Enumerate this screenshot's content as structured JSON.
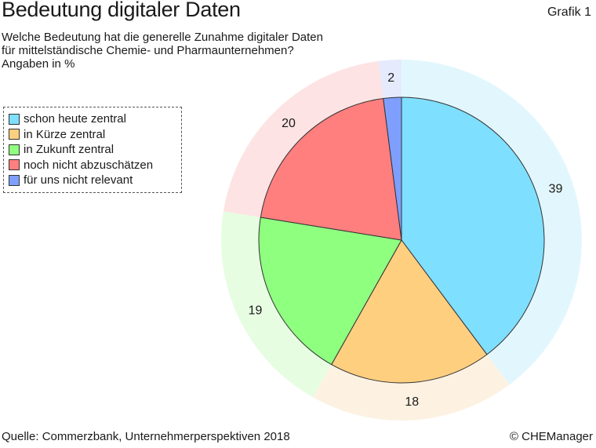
{
  "header": {
    "title": "Bedeutung digitaler Daten",
    "badge": "Grafik 1",
    "subtitle_lines": [
      "Welche Bedeutung hat die generelle Zunahme digitaler Daten",
      "für mittelständische Chemie- und Pharmaunternehmen?",
      "Angaben in %"
    ]
  },
  "chart_data": {
    "type": "pie",
    "title": "Bedeutung digitaler Daten",
    "categories": [
      "schon heute zentral",
      "in Kürze zentral",
      "in Zukunft zentral",
      "noch nicht abzuschätzen",
      "für uns nicht relevant"
    ],
    "values": [
      39,
      18,
      19,
      20,
      2
    ],
    "colors": [
      "#7fdfff",
      "#ffcf80",
      "#8fff80",
      "#ff7f7f",
      "#7f9fff"
    ],
    "ring_colors": [
      "#e2f7fd",
      "#fdf2e2",
      "#e6fde2",
      "#fde3e3",
      "#e6eafd"
    ],
    "legend_position": "left",
    "start_angle": "top",
    "direction": "clockwise"
  },
  "footer": {
    "source": "Quelle: Commerzbank, Unternehmerperspektiven 2018",
    "copyright": "© CHEManager"
  }
}
